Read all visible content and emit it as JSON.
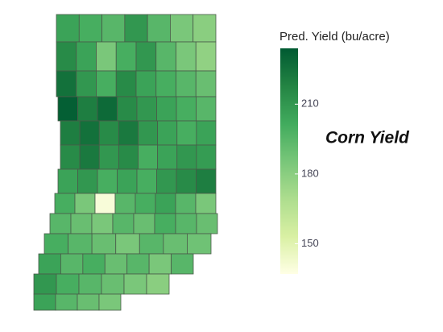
{
  "chart_data": {
    "type": "choropleth",
    "colorbar_title": "Pred. Yield (bu/acre)",
    "annotation": "Corn Yield",
    "clim": [
      137,
      234
    ],
    "cticks": [
      150,
      180,
      210
    ],
    "colors": [
      "#ffffe5",
      "#d9f0a3",
      "#addd8e",
      "#78c679",
      "#41ab5d",
      "#238443",
      "#005a32"
    ],
    "values": [
      205,
      200,
      195,
      210,
      195,
      185,
      180,
      215,
      205,
      185,
      200,
      210,
      195,
      185,
      178,
      225,
      210,
      200,
      215,
      205,
      200,
      195,
      190,
      232,
      220,
      228,
      215,
      210,
      205,
      200,
      195,
      220,
      225,
      215,
      222,
      210,
      205,
      200,
      205,
      215,
      222,
      210,
      215,
      200,
      205,
      210,
      208,
      205,
      210,
      200,
      205,
      200,
      210,
      215,
      220,
      200,
      185,
      140,
      195,
      200,
      205,
      195,
      185,
      195,
      190,
      185,
      195,
      190,
      200,
      195,
      190,
      200,
      195,
      190,
      185,
      195,
      190,
      188,
      205,
      195,
      200,
      190,
      195,
      185,
      195,
      210,
      200,
      195,
      190,
      185,
      180,
      205,
      195,
      190,
      185
    ]
  }
}
